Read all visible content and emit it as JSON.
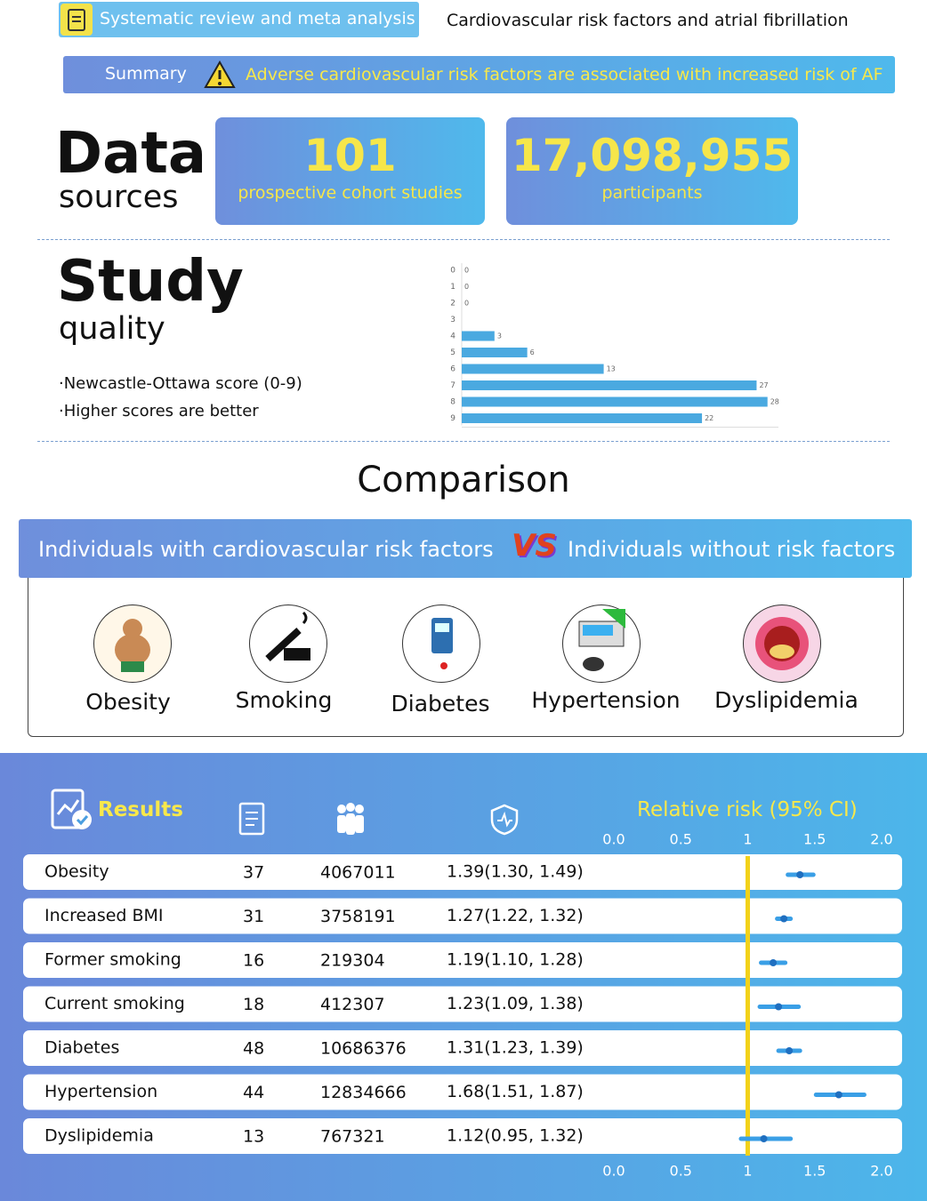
{
  "header": {
    "tag": "Systematic review and meta analysis",
    "title": "Cardiovascular risk factors and atrial fibrillation"
  },
  "summary": {
    "label": "Summary",
    "text": "Adverse cardiovascular risk factors are associated with increased risk of AF"
  },
  "data_sources": {
    "title": "Data",
    "subtitle": "sources",
    "cards": [
      {
        "value": "101",
        "label": "prospective cohort studies"
      },
      {
        "value": "17,098,955",
        "label": "participants"
      }
    ]
  },
  "study_quality": {
    "title": "Study",
    "subtitle": "quality",
    "notes": [
      "·Newcastle-Ottawa score (0-9)",
      "·Higher scores are better"
    ],
    "chart_data": {
      "type": "hbar",
      "categories": [
        "0",
        "1",
        "2",
        "3",
        "4",
        "5",
        "6",
        "7",
        "8",
        "9"
      ],
      "values": [
        0,
        0,
        0,
        null,
        3,
        6,
        13,
        27,
        28,
        22
      ],
      "color": "#4aa9e0",
      "xlim": [
        0,
        29
      ]
    }
  },
  "comparison": {
    "title": "Comparison",
    "left": "Individuals with cardiovascular risk factors",
    "vs": "VS",
    "right": "Individuals without risk factors",
    "factors": [
      "Obesity",
      "Smoking",
      "Diabetes",
      "Hypertension",
      "Dyslipidemia"
    ]
  },
  "results": {
    "title": "Results",
    "axis_title": "Relative risk (95% CI)",
    "chart_data": {
      "type": "forest",
      "xlim": [
        0,
        2
      ],
      "xticks": [
        {
          "value": 0,
          "label": "0.0"
        },
        0.5,
        1,
        1.5,
        {
          "value": 2,
          "label": "2.0"
        }
      ],
      "reference": 1,
      "color": "#3a9fe6",
      "reference_color": "#f2d21a",
      "rows": [
        {
          "name": "Obesity",
          "studies": 37,
          "participants": 4067011,
          "label": "1.39(1.30, 1.49)",
          "estimate": 1.39,
          "lower": 1.3,
          "upper": 1.49
        },
        {
          "name": "Increased BMI",
          "studies": 31,
          "participants": 3758191,
          "label": "1.27(1.22, 1.32)",
          "estimate": 1.27,
          "lower": 1.22,
          "upper": 1.32
        },
        {
          "name": "Former smoking",
          "studies": 16,
          "participants": 219304,
          "label": "1.19(1.10, 1.28)",
          "estimate": 1.19,
          "lower": 1.1,
          "upper": 1.28
        },
        {
          "name": "Current smoking",
          "studies": 18,
          "participants": 412307,
          "label": "1.23(1.09, 1.38)",
          "estimate": 1.23,
          "lower": 1.09,
          "upper": 1.38
        },
        {
          "name": "Diabetes",
          "studies": 48,
          "participants": 10686376,
          "label": "1.31(1.23, 1.39)",
          "estimate": 1.31,
          "lower": 1.23,
          "upper": 1.39
        },
        {
          "name": "Hypertension",
          "studies": 44,
          "participants": 12834666,
          "label": "1.68(1.51, 1.87)",
          "estimate": 1.68,
          "lower": 1.51,
          "upper": 1.87
        },
        {
          "name": "Dyslipidemia",
          "studies": 13,
          "participants": 767321,
          "label": "1.12(0.95, 1.32)",
          "estimate": 1.12,
          "lower": 0.95,
          "upper": 1.32
        }
      ]
    }
  }
}
